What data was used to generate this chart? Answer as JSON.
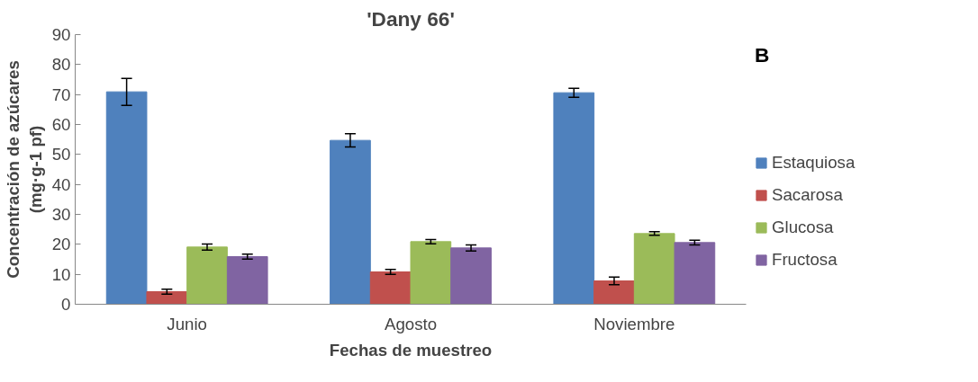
{
  "chart_data": {
    "type": "bar",
    "title": "'Dany 66'",
    "xlabel": "Fechas de muestreo",
    "ylabel": "Concentración de azúcares\n(mg·g-1 pf)",
    "annotations": [
      "B"
    ],
    "categories": [
      "Junio",
      "Agosto",
      "Noviembre"
    ],
    "series": [
      {
        "name": "Estaquiosa",
        "color": "#4f81bd",
        "values": [
          70.9,
          54.7,
          70.6
        ],
        "errors": [
          4.5,
          2.2,
          1.5
        ]
      },
      {
        "name": "Sacarosa",
        "color": "#c0504d",
        "values": [
          4.2,
          10.8,
          7.8
        ],
        "errors": [
          0.8,
          0.8,
          1.3
        ]
      },
      {
        "name": "Glucosa",
        "color": "#9bbb59",
        "values": [
          19.1,
          20.9,
          23.6
        ],
        "errors": [
          1.0,
          0.7,
          0.6
        ]
      },
      {
        "name": "Fructosa",
        "color": "#8064a2",
        "values": [
          15.9,
          18.8,
          20.6
        ],
        "errors": [
          0.8,
          1.0,
          0.8
        ]
      }
    ],
    "ylim": [
      0,
      90
    ],
    "yticks": [
      0,
      10,
      20,
      30,
      40,
      50,
      60,
      70,
      80,
      90
    ],
    "grid": false,
    "legend": "right"
  }
}
